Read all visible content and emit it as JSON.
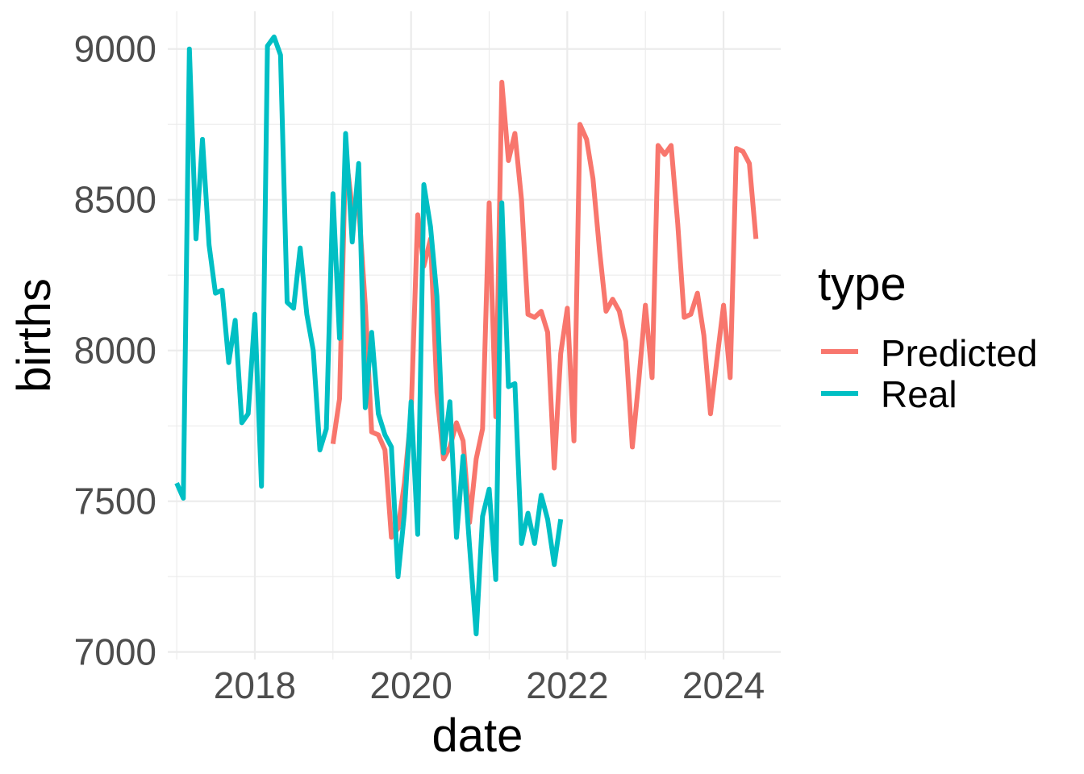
{
  "chart_data": {
    "type": "line",
    "title": "",
    "xlabel": "date",
    "ylabel": "births",
    "x_ticks": [
      "2018",
      "2020",
      "2022",
      "2024"
    ],
    "y_ticks": [
      "7000",
      "7500",
      "8000",
      "8500",
      "9000"
    ],
    "xlim": [
      "2016-11-20",
      "2024-09-25"
    ],
    "ylim": [
      6975,
      9125
    ],
    "grid": true,
    "legend": {
      "title": "type",
      "position": "right",
      "entries": [
        {
          "name": "Predicted",
          "color": "#F8766D"
        },
        {
          "name": "Real",
          "color": "#00BFC4"
        }
      ]
    },
    "series": [
      {
        "name": "Predicted",
        "color": "#F8766D",
        "x": [
          "2019-01",
          "2019-02",
          "2019-03",
          "2019-04",
          "2019-05",
          "2019-06",
          "2019-07",
          "2019-08",
          "2019-09",
          "2019-10",
          "2019-11",
          "2019-12",
          "2020-01",
          "2020-02",
          "2020-03",
          "2020-04",
          "2020-05",
          "2020-06",
          "2020-07",
          "2020-08",
          "2020-09",
          "2020-10",
          "2020-11",
          "2020-12",
          "2021-01",
          "2021-02",
          "2021-03",
          "2021-04",
          "2021-05",
          "2021-06",
          "2021-07",
          "2021-08",
          "2021-09",
          "2021-10",
          "2021-11",
          "2021-12",
          "2022-01",
          "2022-02",
          "2022-03",
          "2022-04",
          "2022-05",
          "2022-06",
          "2022-07",
          "2022-08",
          "2022-09",
          "2022-10",
          "2022-11",
          "2022-12",
          "2023-01",
          "2023-02",
          "2023-03",
          "2023-04",
          "2023-05",
          "2023-06",
          "2023-07",
          "2023-08",
          "2023-09",
          "2023-10",
          "2023-11",
          "2023-12",
          "2024-01",
          "2024-02",
          "2024-03",
          "2024-04",
          "2024-05",
          "2024-06"
        ],
        "values": [
          7690,
          7840,
          8660,
          8470,
          8480,
          8150,
          7730,
          7720,
          7670,
          7380,
          7410,
          7560,
          7790,
          8450,
          8280,
          8370,
          7860,
          7640,
          7680,
          7760,
          7700,
          7430,
          7640,
          7740,
          8490,
          7780,
          8890,
          8630,
          8720,
          8500,
          8120,
          8110,
          8130,
          8060,
          7610,
          7990,
          8140,
          7700,
          8750,
          8700,
          8570,
          8330,
          8130,
          8170,
          8130,
          8030,
          7680,
          7900,
          8150,
          7910,
          8680,
          8650,
          8680,
          8420,
          8110,
          8120,
          8190,
          8050,
          7790,
          7970,
          8150,
          7910,
          8670,
          8660,
          8620,
          8370
        ]
      },
      {
        "name": "Real",
        "color": "#00BFC4",
        "x": [
          "2017-01",
          "2017-02",
          "2017-03",
          "2017-04",
          "2017-05",
          "2017-06",
          "2017-07",
          "2017-08",
          "2017-09",
          "2017-10",
          "2017-11",
          "2017-12",
          "2018-01",
          "2018-02",
          "2018-03",
          "2018-04",
          "2018-05",
          "2018-06",
          "2018-07",
          "2018-08",
          "2018-09",
          "2018-10",
          "2018-11",
          "2018-12",
          "2019-01",
          "2019-02",
          "2019-03",
          "2019-04",
          "2019-05",
          "2019-06",
          "2019-07",
          "2019-08",
          "2019-09",
          "2019-10",
          "2019-11",
          "2019-12",
          "2020-01",
          "2020-02",
          "2020-03",
          "2020-04",
          "2020-05",
          "2020-06",
          "2020-07",
          "2020-08",
          "2020-09",
          "2020-10",
          "2020-11",
          "2020-12",
          "2021-01",
          "2021-02",
          "2021-03",
          "2021-04",
          "2021-05",
          "2021-06",
          "2021-07",
          "2021-08",
          "2021-09",
          "2021-10",
          "2021-11",
          "2021-12"
        ],
        "values": [
          7560,
          7510,
          9000,
          8370,
          8700,
          8350,
          8190,
          8200,
          7960,
          8100,
          7760,
          7790,
          8120,
          7550,
          9010,
          9040,
          8980,
          8160,
          8140,
          8340,
          8120,
          8000,
          7670,
          7740,
          8520,
          8040,
          8720,
          8360,
          8620,
          7810,
          8060,
          7790,
          7720,
          7680,
          7250,
          7460,
          7830,
          7390,
          8550,
          8410,
          8180,
          7660,
          7830,
          7380,
          7650,
          7350,
          7060,
          7450,
          7540,
          7240,
          8490,
          7880,
          7890,
          7360,
          7460,
          7360,
          7520,
          7440,
          7290,
          7440
        ]
      }
    ]
  }
}
